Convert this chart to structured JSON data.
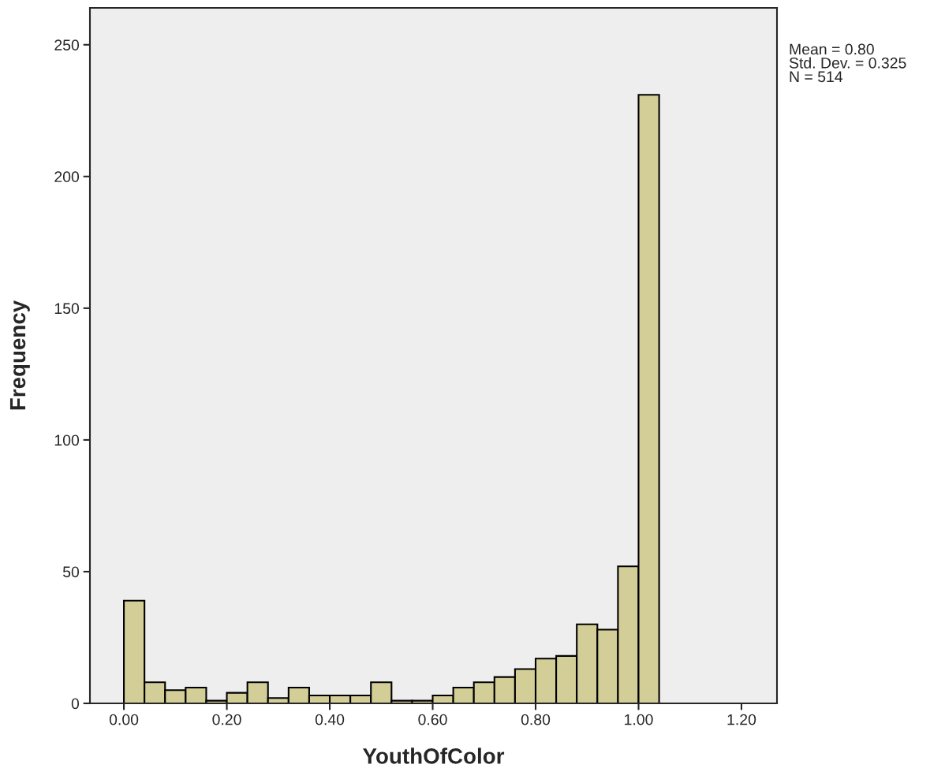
{
  "chart_data": {
    "type": "histogram",
    "xlabel": "YouthOfColor",
    "ylabel": "Frequency",
    "bins": [
      0.0,
      0.04,
      0.08,
      0.12,
      0.16,
      0.2,
      0.24,
      0.28,
      0.32,
      0.36,
      0.4,
      0.44,
      0.48,
      0.52,
      0.56,
      0.6,
      0.64,
      0.68,
      0.72,
      0.76,
      0.8,
      0.84,
      0.88,
      0.92,
      0.96,
      1.0,
      1.04
    ],
    "values": [
      39,
      8,
      5,
      6,
      1,
      4,
      8,
      2,
      6,
      3,
      3,
      3,
      8,
      1,
      1,
      3,
      6,
      8,
      10,
      13,
      17,
      18,
      30,
      28,
      52,
      231
    ],
    "color": "#d3ce97",
    "xlim": [
      -0.066,
      1.269
    ],
    "ylim": [
      0,
      264
    ],
    "xticks": [
      {
        "value": 0,
        "label": "0.00"
      },
      {
        "value": 0.2,
        "label": "0.20"
      },
      {
        "value": 0.4,
        "label": "0.40"
      },
      {
        "value": 0.6,
        "label": "0.60"
      },
      {
        "value": 0.8,
        "label": "0.80"
      },
      {
        "value": 1.0,
        "label": "1.00"
      },
      {
        "value": 1.2,
        "label": "1.20"
      }
    ],
    "yticks": [
      0,
      50,
      100,
      150,
      200,
      250
    ],
    "grid": false,
    "annotations": [
      "Mean = 0.80\nStd. Dev. = 0.325\nN = 514"
    ]
  }
}
